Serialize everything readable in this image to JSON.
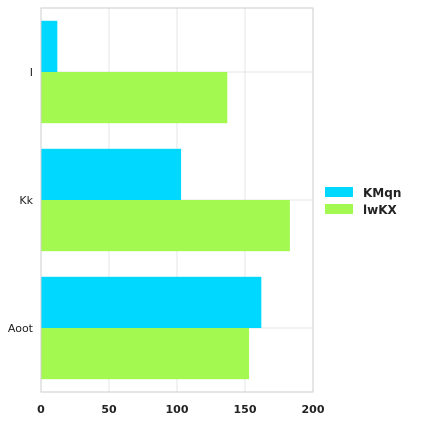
{
  "chart_data": {
    "type": "bar",
    "orientation": "horizontal",
    "categories": [
      "I",
      "Kk",
      "Aoot"
    ],
    "series": [
      {
        "name": "KMqn",
        "values": [
          12,
          103,
          162
        ],
        "color": "#00d8ff"
      },
      {
        "name": "lwKX",
        "values": [
          137,
          183,
          153
        ],
        "color": "#a3f94f"
      }
    ],
    "xlim": [
      0,
      200
    ],
    "xticks": [
      0,
      50,
      100,
      150,
      200
    ],
    "grid": true,
    "legend_position": "right"
  }
}
